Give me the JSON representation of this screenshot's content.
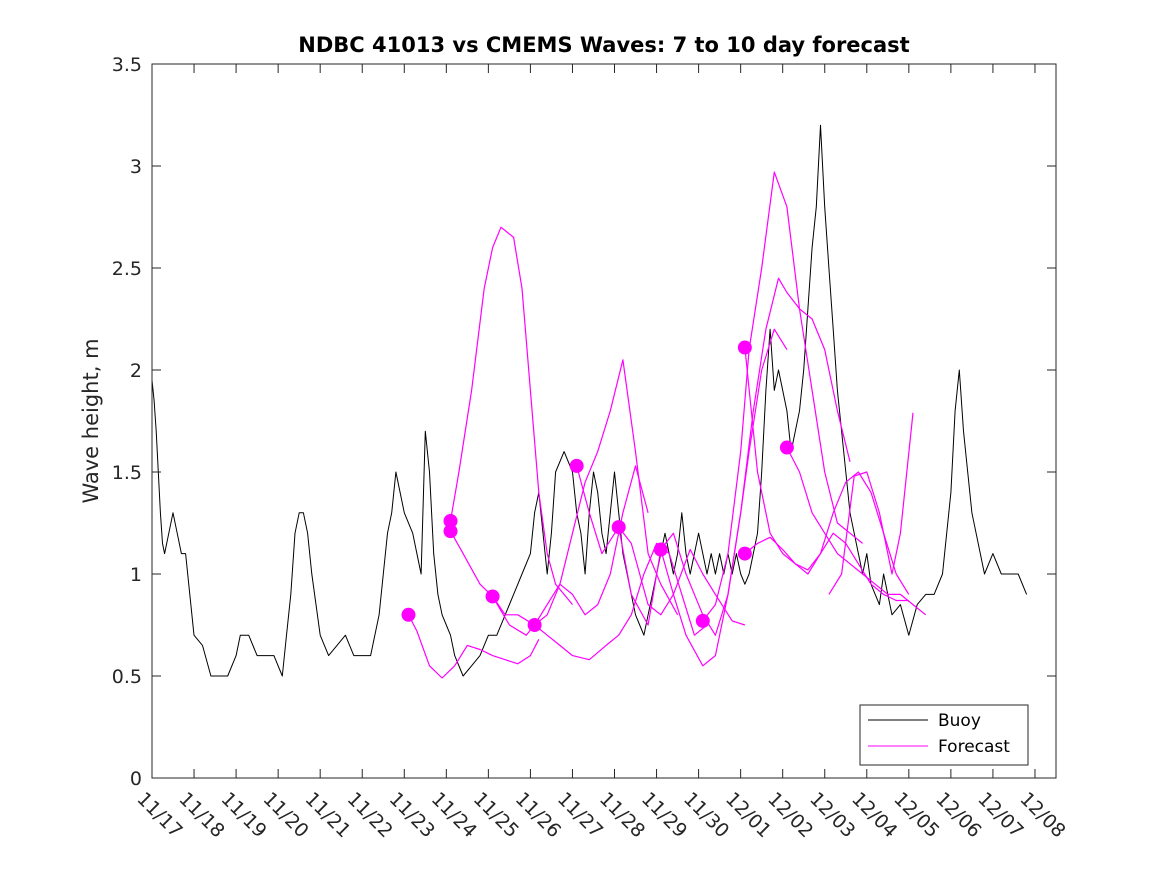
{
  "chart_data": {
    "type": "line",
    "title": "NDBC 41013 vs CMEMS Waves: 7 to 10 day forecast",
    "xlabel": "",
    "ylabel": "Wave height, m",
    "xlim": [
      0,
      21.5
    ],
    "ylim": [
      0,
      3.5
    ],
    "yticks": [
      0,
      0.5,
      1,
      1.5,
      2,
      2.5,
      3,
      3.5
    ],
    "ytick_labels": [
      "0",
      "0.5",
      "1",
      "1.5",
      "2",
      "2.5",
      "3",
      "3.5"
    ],
    "xticks": [
      0,
      1,
      2,
      3,
      4,
      5,
      6,
      7,
      8,
      9,
      10,
      11,
      12,
      13,
      14,
      15,
      16,
      17,
      18,
      19,
      20,
      21
    ],
    "xtick_labels": [
      "11/17",
      "11/18",
      "11/19",
      "11/20",
      "11/21",
      "11/22",
      "11/23",
      "11/24",
      "11/25",
      "11/26",
      "11/27",
      "11/28",
      "11/29",
      "11/30",
      "12/01",
      "12/02",
      "12/03",
      "12/04",
      "12/05",
      "12/06",
      "12/07",
      "12/08"
    ],
    "legend": {
      "position": "bottom-right",
      "entries": [
        "Buoy",
        "Forecast"
      ]
    },
    "colors": {
      "buoy": "#000000",
      "forecast": "#ff00ff",
      "axis": "#262626"
    },
    "series": [
      {
        "name": "Buoy",
        "x": [
          0,
          0.05,
          0.1,
          0.15,
          0.2,
          0.25,
          0.3,
          0.4,
          0.5,
          0.6,
          0.7,
          0.8,
          0.9,
          1.0,
          1.2,
          1.4,
          1.6,
          1.8,
          2.0,
          2.1,
          2.3,
          2.5,
          2.6,
          2.7,
          2.9,
          3.1,
          3.2,
          3.3,
          3.4,
          3.5,
          3.6,
          3.7,
          3.8,
          3.9,
          4.0,
          4.2,
          4.4,
          4.6,
          4.8,
          5.0,
          5.2,
          5.4,
          5.5,
          5.6,
          5.7,
          5.8,
          6.0,
          6.2,
          6.3,
          6.4,
          6.5,
          6.6,
          6.7,
          6.8,
          6.9,
          7.0,
          7.1,
          7.2,
          7.4,
          7.6,
          7.8,
          8.0,
          8.2,
          8.4,
          8.6,
          8.8,
          9.0,
          9.1,
          9.2,
          9.3,
          9.4,
          9.5,
          9.6,
          9.8,
          10.0,
          10.1,
          10.2,
          10.3,
          10.4,
          10.5,
          10.6,
          10.7,
          10.8,
          10.9,
          11.0,
          11.1,
          11.2,
          11.3,
          11.4,
          11.5,
          11.6,
          11.7,
          11.8,
          11.9,
          12.0,
          12.1,
          12.2,
          12.3,
          12.4,
          12.5,
          12.6,
          12.7,
          12.8,
          12.9,
          13.0,
          13.1,
          13.2,
          13.3,
          13.4,
          13.5,
          13.6,
          13.7,
          13.8,
          13.9,
          14.0,
          14.1,
          14.2,
          14.3,
          14.4,
          14.5,
          14.6,
          14.7,
          14.8,
          14.9,
          15.0,
          15.1,
          15.2,
          15.3,
          15.4,
          15.5,
          15.6,
          15.7,
          15.8,
          15.9,
          16.0,
          16.1,
          16.2,
          16.3,
          16.4,
          16.5,
          16.6,
          16.7,
          16.8,
          16.9,
          17.0,
          17.1,
          17.2,
          17.3,
          17.4,
          17.6,
          17.8,
          18.0,
          18.2,
          18.4,
          18.6,
          18.8,
          18.9,
          19.0,
          19.1,
          19.2,
          19.3,
          19.4,
          19.5,
          19.6,
          19.8,
          20.0,
          20.2,
          20.4,
          20.6,
          20.8
        ],
        "values": [
          1.95,
          1.85,
          1.7,
          1.5,
          1.3,
          1.15,
          1.1,
          1.2,
          1.3,
          1.2,
          1.1,
          1.1,
          0.9,
          0.7,
          0.65,
          0.5,
          0.5,
          0.5,
          0.6,
          0.7,
          0.7,
          0.6,
          0.6,
          0.6,
          0.6,
          0.5,
          0.7,
          0.9,
          1.2,
          1.3,
          1.3,
          1.2,
          1.0,
          0.85,
          0.7,
          0.6,
          0.65,
          0.7,
          0.6,
          0.6,
          0.6,
          0.8,
          1.0,
          1.2,
          1.3,
          1.5,
          1.3,
          1.2,
          1.1,
          1.0,
          1.7,
          1.5,
          1.1,
          0.9,
          0.8,
          0.75,
          0.7,
          0.6,
          0.5,
          0.55,
          0.6,
          0.7,
          0.7,
          0.8,
          0.9,
          1.0,
          1.1,
          1.3,
          1.4,
          1.2,
          1.0,
          1.2,
          1.5,
          1.6,
          1.5,
          1.3,
          1.2,
          1.0,
          1.3,
          1.5,
          1.4,
          1.2,
          1.1,
          1.3,
          1.5,
          1.3,
          1.1,
          1.0,
          0.9,
          0.8,
          0.75,
          0.7,
          0.8,
          0.9,
          1.0,
          1.1,
          1.2,
          1.1,
          1.0,
          1.1,
          1.3,
          1.1,
          1.0,
          1.1,
          1.2,
          1.1,
          1.0,
          1.1,
          1.0,
          1.1,
          1.0,
          1.1,
          1.0,
          1.1,
          1.0,
          0.95,
          1.0,
          1.1,
          1.2,
          1.5,
          1.9,
          2.2,
          1.9,
          2.0,
          1.9,
          1.8,
          1.6,
          1.7,
          1.8,
          2.0,
          2.3,
          2.6,
          2.8,
          3.2,
          2.8,
          2.5,
          2.2,
          1.9,
          1.7,
          1.5,
          1.3,
          1.2,
          1.1,
          1.0,
          1.1,
          0.95,
          0.9,
          0.85,
          1.0,
          0.8,
          0.85,
          0.7,
          0.85,
          0.9,
          0.9,
          1.0,
          1.2,
          1.4,
          1.8,
          2.0,
          1.7,
          1.5,
          1.3,
          1.2,
          1.0,
          1.1,
          1.0,
          1.0,
          1.0,
          0.9
        ]
      },
      {
        "name": "Forecast",
        "lines": [
          {
            "x": [
              6.1,
              6.3,
              6.6,
              6.9,
              7.2,
              7.5,
              7.8,
              8.1,
              8.4,
              8.7,
              9.0,
              9.2
            ],
            "values": [
              0.8,
              0.72,
              0.55,
              0.49,
              0.55,
              0.65,
              0.63,
              0.6,
              0.58,
              0.56,
              0.6,
              0.68
            ]
          },
          {
            "x": [
              7.1,
              7.3,
              7.6,
              7.9,
              8.1,
              8.3,
              8.6,
              8.8,
              9.0,
              9.2,
              9.4,
              9.6,
              9.8,
              10.0
            ],
            "values": [
              1.26,
              1.5,
              1.9,
              2.4,
              2.6,
              2.7,
              2.65,
              2.4,
              1.9,
              1.4,
              1.1,
              0.95,
              0.9,
              0.85
            ]
          },
          {
            "x": [
              7.1,
              7.4,
              7.8,
              8.1,
              8.4,
              8.7,
              9.1,
              9.4,
              9.7,
              10.0,
              10.3,
              10.6,
              10.9,
              11.2,
              11.5,
              11.8,
              12.1,
              12.5
            ],
            "values": [
              1.21,
              1.1,
              0.95,
              0.89,
              0.8,
              0.8,
              0.75,
              0.8,
              0.95,
              1.2,
              1.45,
              1.6,
              1.8,
              2.05,
              1.6,
              1.1,
              0.95,
              0.8
            ]
          },
          {
            "x": [
              8.1,
              8.5,
              8.9,
              9.1,
              9.4,
              9.7,
              10.0,
              10.3,
              10.6,
              10.9,
              11.2,
              11.5,
              11.8
            ],
            "values": [
              0.89,
              0.75,
              0.7,
              0.75,
              0.85,
              0.95,
              0.9,
              0.8,
              0.85,
              1.0,
              1.3,
              1.53,
              1.3
            ]
          },
          {
            "x": [
              9.1,
              9.4,
              9.7,
              10.0,
              10.4,
              10.8,
              11.1,
              11.4,
              11.7,
              12.0,
              12.3,
              12.6,
              12.9,
              13.2
            ],
            "values": [
              0.75,
              0.7,
              0.65,
              0.6,
              0.58,
              0.65,
              0.7,
              0.8,
              1.0,
              1.15,
              1.1,
              0.9,
              0.7,
              0.75
            ]
          },
          {
            "x": [
              10.1,
              10.4,
              10.7,
              11.1,
              11.4,
              11.8,
              12.1,
              12.4,
              12.8,
              13.1,
              13.4,
              13.8,
              14.1
            ],
            "values": [
              1.53,
              1.3,
              1.1,
              1.23,
              1.15,
              0.85,
              0.8,
              0.9,
              1.12,
              1.0,
              0.9,
              0.77,
              0.75
            ]
          },
          {
            "x": [
              11.1,
              11.4,
              11.8,
              12.1,
              12.4,
              12.7,
              13.1,
              13.4,
              13.7,
              14.0,
              14.2,
              14.5,
              14.8,
              15.1
            ],
            "values": [
              1.23,
              0.9,
              0.75,
              1.12,
              1.2,
              1.0,
              0.8,
              0.7,
              0.9,
              1.3,
              1.6,
              2.0,
              2.2,
              2.1
            ]
          },
          {
            "x": [
              12.1,
              12.4,
              12.7,
              13.1,
              13.4,
              13.7,
              14.0,
              14.3,
              14.6,
              14.9,
              15.1,
              15.4,
              15.7,
              16.0,
              16.3,
              16.6
            ],
            "values": [
              1.12,
              0.9,
              0.7,
              0.55,
              0.6,
              0.9,
              1.3,
              1.8,
              2.2,
              2.45,
              2.38,
              2.3,
              2.25,
              2.1,
              1.8,
              1.55
            ]
          },
          {
            "x": [
              13.1,
              13.4,
              13.7,
              14.0,
              14.2,
              14.5,
              14.8,
              15.1,
              15.4,
              15.7,
              16.0,
              16.3,
              16.6,
              16.9
            ],
            "values": [
              0.77,
              0.85,
              1.1,
              1.6,
              2.1,
              2.5,
              2.97,
              2.8,
              2.3,
              1.9,
              1.5,
              1.25,
              1.2,
              1.15
            ]
          },
          {
            "x": [
              14.1,
              14.4,
              14.7,
              15.0,
              15.3,
              15.6,
              15.9,
              16.2,
              16.5,
              16.8,
              17.1,
              17.4,
              17.7,
              18.0
            ],
            "values": [
              2.11,
              1.5,
              1.2,
              1.1,
              1.05,
              1.0,
              1.1,
              1.3,
              1.45,
              1.5,
              1.4,
              1.2,
              1.0,
              0.9
            ]
          },
          {
            "x": [
              15.1,
              15.4,
              15.7,
              16.0,
              16.3,
              16.6,
              16.9,
              17.2,
              17.5,
              17.8,
              18.1,
              18.4
            ],
            "values": [
              1.62,
              1.5,
              1.3,
              1.2,
              1.1,
              1.05,
              1.0,
              0.95,
              0.9,
              0.9,
              0.85,
              0.8
            ]
          },
          {
            "x": [
              14.1,
              14.4,
              14.7,
              15.0,
              15.3,
              15.6,
              15.9,
              16.2,
              16.5,
              16.8,
              17.1,
              17.4,
              17.7,
              18.0
            ],
            "values": [
              1.1,
              1.15,
              1.18,
              1.12,
              1.05,
              1.02,
              1.1,
              1.2,
              1.15,
              1.05,
              0.95,
              0.9,
              0.87,
              0.87
            ]
          },
          {
            "x": [
              16.1,
              16.4,
              16.7,
              17.0,
              17.3,
              17.6,
              17.8,
              18.1
            ],
            "values": [
              0.9,
              1.0,
              1.48,
              1.5,
              1.3,
              1.0,
              1.2,
              1.79
            ]
          }
        ],
        "markers": {
          "x": [
            6.1,
            7.1,
            7.1,
            8.1,
            9.1,
            10.1,
            11.1,
            12.1,
            13.1,
            14.1,
            14.1,
            15.1
          ],
          "values": [
            0.8,
            1.26,
            1.21,
            0.89,
            0.75,
            1.53,
            1.23,
            1.12,
            0.77,
            2.11,
            1.1,
            1.62
          ]
        }
      }
    ]
  }
}
